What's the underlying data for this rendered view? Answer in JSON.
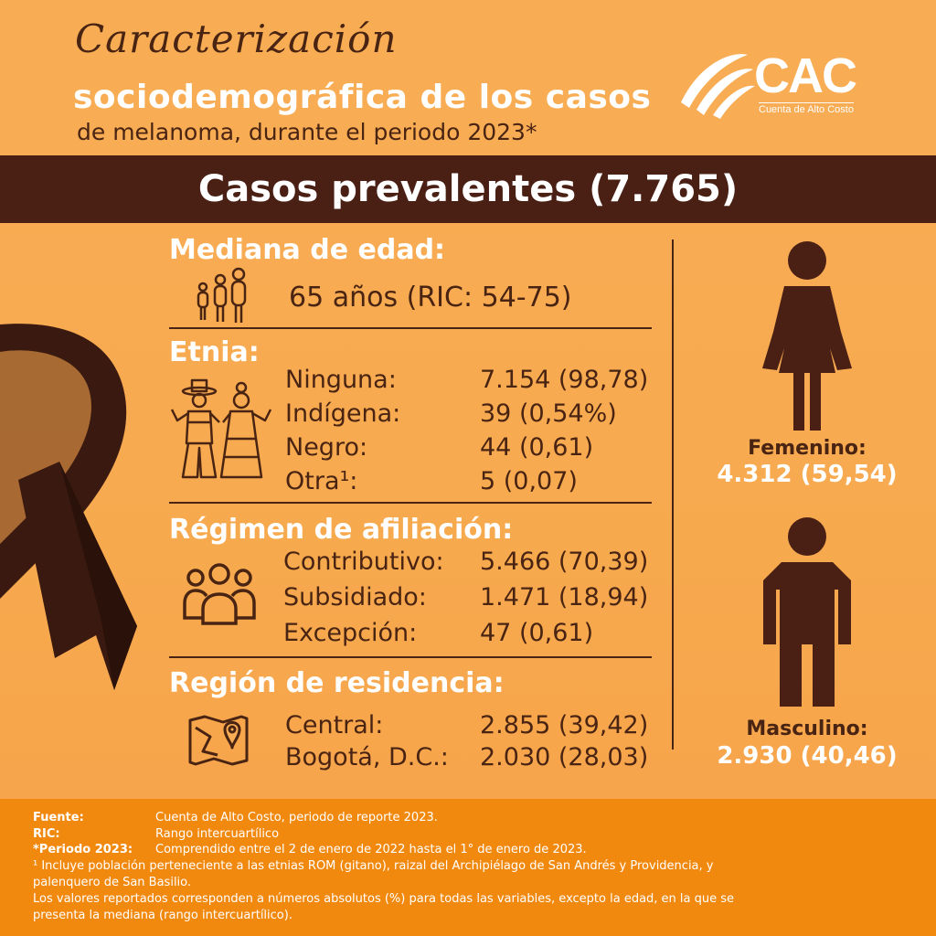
{
  "header": {
    "title_script": "Caracterización",
    "title_bold": "sociodemográfica de los casos",
    "title_sub": "de melanoma, durante el periodo 2023*"
  },
  "logo": {
    "text": "CAC",
    "subtitle": "Cuenta de Alto Costo"
  },
  "banner": {
    "text": "Casos prevalentes (7.765)"
  },
  "age": {
    "title": "Mediana de edad:",
    "value": "65 años (RIC: 54-75)",
    "icon": "family-icon"
  },
  "ethnicity": {
    "title": "Etnia:",
    "icon": "ethnic-couple-icon",
    "rows": [
      {
        "label": "Ninguna:",
        "value": "7.154 (98,78)"
      },
      {
        "label": "Indígena:",
        "value": "39 (0,54%)"
      },
      {
        "label": "Negro:",
        "value": "44 (0,61)"
      },
      {
        "label": "Otra¹:",
        "value": "5 (0,07)"
      }
    ]
  },
  "regime": {
    "title": "Régimen de afiliación:",
    "icon": "group-icon",
    "rows": [
      {
        "label": "Contributivo:",
        "value": "5.466 (70,39)"
      },
      {
        "label": "Subsidiado:",
        "value": "1.471 (18,94)"
      },
      {
        "label": "Excepción:",
        "value": "47 (0,61)"
      }
    ]
  },
  "region": {
    "title": "Región de residencia:",
    "icon": "map-pin-icon",
    "rows": [
      {
        "label": "Central:",
        "value": "2.855 (39,42)"
      },
      {
        "label": "Bogotá, D.C.:",
        "value": "2.030 (28,03)"
      }
    ]
  },
  "gender": {
    "female": {
      "label": "Femenino:",
      "value": "4.312 (59,54)",
      "icon": "female-icon"
    },
    "male": {
      "label": "Masculino:",
      "value": "2.930 (40,46)",
      "icon": "male-icon"
    }
  },
  "footer": {
    "source_key": "Fuente:",
    "source_val": "Cuenta de Alto Costo, periodo de reporte 2023.",
    "ric_key": "RIC:",
    "ric_val": "Rango intercuartílico",
    "period_key": "*Periodo 2023:",
    "period_val": "Comprendido entre el 2 de enero de 2022 hasta el 1° de enero de 2023.",
    "note1": "¹ Incluye población perteneciente a las etnias ROM (gitano), raizal del Archipiélago de San Andrés y Providencia, y",
    "note2": "palenquero de San Basilio.",
    "note3": "Los valores reportados corresponden a números absolutos (%) para todas las variables, excepto la edad, en la que se",
    "note4": "presenta la mediana (rango intercuartílico)."
  },
  "colors": {
    "brown": "#4a2015",
    "orange": "#f8ad55",
    "footer": "#f2890f"
  }
}
